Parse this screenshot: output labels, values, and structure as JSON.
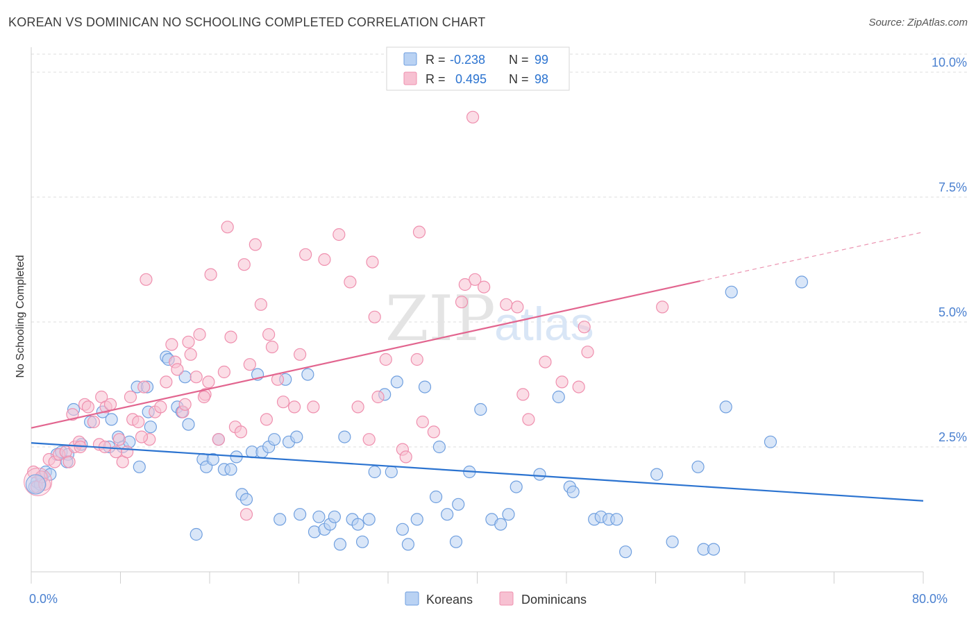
{
  "chart_data": {
    "type": "scatter",
    "title": "KOREAN VS DOMINICAN NO SCHOOLING COMPLETED CORRELATION CHART",
    "source": "Source: ZipAtlas.com",
    "xlabel": "",
    "ylabel": "No Schooling Completed",
    "xlim": [
      0,
      80
    ],
    "ylim": [
      0,
      10.5
    ],
    "x_tick_labels": [
      {
        "value": 0,
        "label": "0.0%"
      },
      {
        "value": 80,
        "label": "80.0%"
      }
    ],
    "y_tick_labels": [
      {
        "value": 2.5,
        "label": "2.5%"
      },
      {
        "value": 5.0,
        "label": "5.0%"
      },
      {
        "value": 7.5,
        "label": "7.5%"
      },
      {
        "value": 10.0,
        "label": "10.0%"
      }
    ],
    "watermark": {
      "zip": "ZIP",
      "atlas": "atlas"
    },
    "legend_top": [
      {
        "r_label": "R =",
        "r_value": "-0.238",
        "n_label": "N =",
        "n_value": "99"
      },
      {
        "r_label": "R =",
        "r_value": "0.495",
        "n_label": "N =",
        "n_value": "98"
      }
    ],
    "series": [
      {
        "name": "Koreans",
        "color": "#6f9fdf",
        "fill": "#b9d2f3",
        "line_color": "#2b73d0",
        "trend": {
          "x0": 0,
          "y0": 2.58,
          "x1": 80,
          "y1": 1.42
        },
        "points": [
          [
            0.3,
            1.7
          ],
          [
            0.5,
            1.8
          ],
          [
            0.8,
            1.75
          ],
          [
            1.0,
            1.9
          ],
          [
            1.3,
            2.0
          ],
          [
            1.7,
            1.95
          ],
          [
            2.3,
            2.35
          ],
          [
            2.7,
            2.4
          ],
          [
            3.3,
            2.35
          ],
          [
            3.2,
            2.2
          ],
          [
            3.8,
            3.25
          ],
          [
            4.5,
            2.55
          ],
          [
            5.3,
            3.0
          ],
          [
            6.4,
            3.2
          ],
          [
            7.0,
            2.5
          ],
          [
            7.2,
            3.05
          ],
          [
            7.8,
            2.7
          ],
          [
            8.2,
            2.5
          ],
          [
            8.8,
            2.6
          ],
          [
            9.7,
            2.1
          ],
          [
            9.5,
            3.7
          ],
          [
            10.5,
            3.2
          ],
          [
            10.4,
            3.7
          ],
          [
            10.7,
            2.9
          ],
          [
            12.1,
            4.3
          ],
          [
            12.3,
            4.25
          ],
          [
            13.1,
            3.3
          ],
          [
            13.5,
            3.2
          ],
          [
            13.8,
            3.9
          ],
          [
            14.1,
            2.95
          ],
          [
            14.8,
            0.75
          ],
          [
            15.4,
            2.25
          ],
          [
            15.7,
            2.1
          ],
          [
            16.3,
            2.25
          ],
          [
            16.8,
            2.65
          ],
          [
            17.3,
            2.05
          ],
          [
            17.9,
            2.05
          ],
          [
            18.4,
            2.3
          ],
          [
            18.9,
            1.55
          ],
          [
            19.3,
            1.45
          ],
          [
            19.8,
            2.4
          ],
          [
            20.3,
            3.95
          ],
          [
            20.7,
            2.4
          ],
          [
            21.3,
            2.5
          ],
          [
            21.8,
            2.65
          ],
          [
            22.3,
            1.05
          ],
          [
            22.8,
            3.85
          ],
          [
            23.1,
            2.6
          ],
          [
            23.8,
            2.7
          ],
          [
            24.1,
            1.15
          ],
          [
            24.8,
            3.95
          ],
          [
            25.4,
            0.8
          ],
          [
            25.8,
            1.1
          ],
          [
            26.3,
            0.85
          ],
          [
            26.8,
            0.95
          ],
          [
            27.2,
            1.1
          ],
          [
            27.7,
            0.55
          ],
          [
            28.1,
            2.7
          ],
          [
            28.8,
            1.05
          ],
          [
            29.3,
            0.95
          ],
          [
            29.7,
            0.6
          ],
          [
            30.3,
            1.05
          ],
          [
            30.8,
            2.0
          ],
          [
            31.7,
            3.55
          ],
          [
            32.3,
            2.0
          ],
          [
            32.8,
            3.8
          ],
          [
            33.3,
            0.85
          ],
          [
            33.8,
            0.55
          ],
          [
            34.6,
            1.05
          ],
          [
            35.3,
            3.7
          ],
          [
            36.3,
            1.5
          ],
          [
            36.6,
            2.5
          ],
          [
            37.3,
            1.15
          ],
          [
            38.1,
            0.6
          ],
          [
            38.3,
            1.35
          ],
          [
            39.3,
            2.0
          ],
          [
            40.3,
            3.25
          ],
          [
            41.3,
            1.05
          ],
          [
            42.1,
            0.95
          ],
          [
            42.8,
            1.15
          ],
          [
            43.5,
            1.7
          ],
          [
            45.6,
            1.95
          ],
          [
            47.3,
            3.5
          ],
          [
            48.3,
            1.7
          ],
          [
            48.6,
            1.6
          ],
          [
            50.5,
            1.05
          ],
          [
            51.1,
            1.1
          ],
          [
            51.8,
            1.05
          ],
          [
            52.5,
            1.05
          ],
          [
            53.3,
            0.4
          ],
          [
            56.1,
            1.95
          ],
          [
            57.5,
            0.6
          ],
          [
            59.8,
            2.1
          ],
          [
            60.3,
            0.45
          ],
          [
            61.2,
            0.45
          ],
          [
            62.3,
            3.3
          ],
          [
            62.8,
            5.6
          ],
          [
            66.3,
            2.6
          ],
          [
            69.1,
            5.8
          ]
        ]
      },
      {
        "name": "Dominicans",
        "color": "#ef8fae",
        "fill": "#f7c1d2",
        "line_color": "#e2658f",
        "trend": {
          "x0": 0,
          "y0": 2.88,
          "x1": 60,
          "y1": 5.82
        },
        "trend_dashed": {
          "x0": 60,
          "y0": 5.82,
          "x1": 80,
          "y1": 6.8
        },
        "points": [
          [
            0.2,
            2.0
          ],
          [
            0.5,
            1.7
          ],
          [
            0.9,
            1.9
          ],
          [
            1.2,
            1.75
          ],
          [
            1.6,
            2.25
          ],
          [
            2.1,
            2.2
          ],
          [
            2.5,
            2.35
          ],
          [
            3.1,
            2.4
          ],
          [
            3.4,
            2.2
          ],
          [
            3.7,
            3.15
          ],
          [
            3.9,
            2.5
          ],
          [
            4.3,
            2.6
          ],
          [
            4.8,
            3.35
          ],
          [
            5.1,
            3.3
          ],
          [
            5.6,
            3.0
          ],
          [
            6.1,
            2.55
          ],
          [
            6.3,
            3.5
          ],
          [
            6.7,
            3.3
          ],
          [
            7.1,
            3.35
          ],
          [
            7.6,
            2.4
          ],
          [
            7.9,
            2.65
          ],
          [
            8.2,
            2.2
          ],
          [
            8.6,
            2.4
          ],
          [
            8.9,
            3.5
          ],
          [
            9.1,
            3.05
          ],
          [
            9.6,
            3.0
          ],
          [
            10.1,
            3.7
          ],
          [
            10.3,
            5.85
          ],
          [
            10.6,
            2.65
          ],
          [
            11.1,
            3.2
          ],
          [
            11.6,
            3.3
          ],
          [
            12.1,
            3.8
          ],
          [
            12.6,
            4.55
          ],
          [
            12.9,
            4.2
          ],
          [
            13.1,
            4.05
          ],
          [
            13.6,
            3.2
          ],
          [
            13.8,
            3.35
          ],
          [
            14.1,
            4.6
          ],
          [
            14.3,
            4.35
          ],
          [
            14.8,
            3.9
          ],
          [
            15.1,
            4.75
          ],
          [
            15.6,
            3.55
          ],
          [
            15.9,
            3.8
          ],
          [
            16.1,
            5.95
          ],
          [
            16.8,
            2.65
          ],
          [
            17.3,
            4.0
          ],
          [
            17.6,
            6.9
          ],
          [
            17.9,
            4.7
          ],
          [
            18.3,
            2.9
          ],
          [
            18.8,
            2.8
          ],
          [
            19.1,
            6.15
          ],
          [
            19.3,
            1.15
          ],
          [
            19.6,
            4.15
          ],
          [
            20.1,
            6.55
          ],
          [
            20.6,
            5.35
          ],
          [
            21.1,
            3.05
          ],
          [
            21.3,
            4.75
          ],
          [
            21.6,
            4.5
          ],
          [
            22.1,
            3.85
          ],
          [
            22.6,
            3.4
          ],
          [
            23.6,
            3.3
          ],
          [
            24.1,
            4.35
          ],
          [
            24.6,
            6.35
          ],
          [
            25.3,
            3.3
          ],
          [
            26.3,
            6.25
          ],
          [
            27.6,
            6.75
          ],
          [
            28.6,
            5.8
          ],
          [
            29.3,
            3.3
          ],
          [
            30.3,
            2.65
          ],
          [
            30.6,
            6.2
          ],
          [
            30.8,
            5.1
          ],
          [
            31.1,
            3.5
          ],
          [
            31.8,
            4.25
          ],
          [
            33.3,
            2.45
          ],
          [
            33.6,
            2.3
          ],
          [
            34.6,
            4.25
          ],
          [
            34.8,
            6.8
          ],
          [
            35.1,
            3.0
          ],
          [
            36.1,
            2.8
          ],
          [
            38.6,
            5.4
          ],
          [
            38.9,
            5.75
          ],
          [
            39.6,
            9.1
          ],
          [
            39.8,
            5.85
          ],
          [
            40.6,
            5.7
          ],
          [
            42.6,
            5.35
          ],
          [
            43.6,
            5.3
          ],
          [
            44.1,
            3.55
          ],
          [
            44.6,
            3.05
          ],
          [
            46.1,
            4.2
          ],
          [
            47.6,
            3.8
          ],
          [
            49.1,
            3.7
          ],
          [
            49.6,
            4.9
          ],
          [
            49.9,
            4.4
          ],
          [
            56.6,
            5.3
          ],
          [
            4.4,
            2.5
          ],
          [
            6.6,
            2.5
          ],
          [
            9.9,
            2.7
          ],
          [
            15.5,
            3.5
          ]
        ]
      }
    ]
  }
}
